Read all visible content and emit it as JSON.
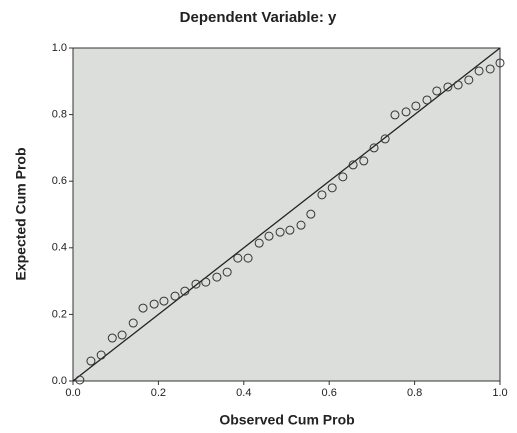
{
  "chart_data": {
    "type": "scatter",
    "title": "Dependent Variable: y",
    "x_label": "Observed Cum Prob",
    "y_label": "Expected Cum Prob",
    "x": [
      0.016,
      0.042,
      0.066,
      0.092,
      0.115,
      0.141,
      0.164,
      0.19,
      0.213,
      0.239,
      0.262,
      0.288,
      0.311,
      0.337,
      0.361,
      0.386,
      0.41,
      0.436,
      0.459,
      0.485,
      0.508,
      0.534,
      0.557,
      0.583,
      0.607,
      0.632,
      0.656,
      0.681,
      0.705,
      0.731,
      0.754,
      0.78,
      0.803,
      0.829,
      0.852,
      0.878,
      0.902,
      0.927,
      0.951,
      0.977,
      1.0
    ],
    "values": [
      0.003,
      0.06,
      0.078,
      0.129,
      0.138,
      0.174,
      0.219,
      0.231,
      0.24,
      0.255,
      0.27,
      0.291,
      0.297,
      0.312,
      0.327,
      0.369,
      0.369,
      0.414,
      0.435,
      0.447,
      0.453,
      0.468,
      0.501,
      0.559,
      0.58,
      0.613,
      0.649,
      0.661,
      0.7,
      0.727,
      0.799,
      0.808,
      0.826,
      0.844,
      0.871,
      0.883,
      0.889,
      0.904,
      0.931,
      0.937,
      0.955
    ],
    "color": "#333333",
    "xlim": [
      0,
      1
    ],
    "ylim": [
      0,
      1
    ],
    "xticks": [
      {
        "value": 0,
        "label": "0.0"
      },
      {
        "value": 0.2,
        "label": "0.2"
      },
      {
        "value": 0.4,
        "label": "0.4"
      },
      {
        "value": 0.6,
        "label": "0.6"
      },
      {
        "value": 0.8,
        "label": "0.8"
      },
      {
        "value": 1,
        "label": "1.0"
      }
    ],
    "yticks": [
      {
        "value": 0,
        "label": "0.0"
      },
      {
        "value": 0.2,
        "label": "0.2"
      },
      {
        "value": 0.4,
        "label": "0.4"
      },
      {
        "value": 0.6,
        "label": "0.6"
      },
      {
        "value": 0.8,
        "label": "0.8"
      },
      {
        "value": 1,
        "label": "1.0"
      }
    ]
  }
}
